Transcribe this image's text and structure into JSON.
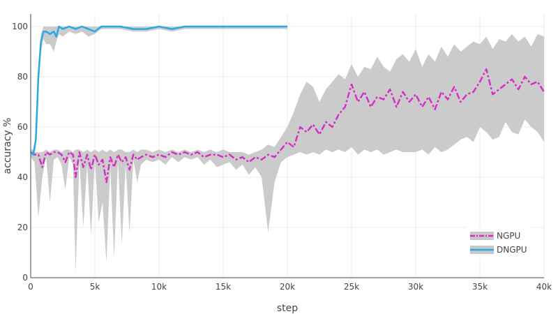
{
  "chart_data": {
    "type": "line",
    "title": "",
    "xlabel": "step",
    "ylabel": "accuracy %",
    "xlim": [
      0,
      40000
    ],
    "ylim": [
      0,
      105
    ],
    "grid": true,
    "legend_position": "bottom-right",
    "x_ticks": [
      0,
      5000,
      10000,
      15000,
      20000,
      25000,
      30000,
      35000,
      40000
    ],
    "x_tick_labels": [
      "0",
      "5k",
      "10k",
      "15k",
      "20k",
      "25k",
      "30k",
      "35k",
      "40k"
    ],
    "y_ticks": [
      0,
      20,
      40,
      60,
      80,
      100
    ],
    "y_tick_labels": [
      "0",
      "20",
      "40",
      "60",
      "80",
      "100"
    ],
    "series": [
      {
        "name": "NGPU",
        "color": "#d62fc6",
        "band_color": "#c8c8c8",
        "line_style": "dash-dot",
        "x": [
          0,
          300,
          600,
          900,
          1200,
          1500,
          1800,
          2100,
          2400,
          2700,
          3000,
          3300,
          3500,
          3800,
          4100,
          4400,
          4700,
          5000,
          5300,
          5600,
          5900,
          6200,
          6500,
          6800,
          7100,
          7400,
          7700,
          8000,
          8300,
          8600,
          9000,
          9500,
          10000,
          10500,
          11000,
          11500,
          12000,
          12500,
          13000,
          13500,
          14000,
          14500,
          15000,
          15500,
          16000,
          16500,
          17000,
          17500,
          18000,
          18500,
          19000,
          19500,
          20000,
          20500,
          21000,
          21500,
          22000,
          22500,
          23000,
          23500,
          24000,
          24500,
          25000,
          25500,
          26000,
          26500,
          27000,
          27500,
          28000,
          28500,
          29000,
          29500,
          30000,
          30500,
          31000,
          31500,
          32000,
          32500,
          33000,
          33500,
          34000,
          34500,
          35000,
          35500,
          36000,
          36500,
          37000,
          37500,
          38000,
          38500,
          39000,
          39500,
          40000
        ],
        "values": [
          50,
          49,
          49,
          44,
          50,
          49,
          50,
          50,
          49,
          46,
          50,
          49,
          40,
          50,
          44,
          49,
          43,
          49,
          45,
          47,
          38,
          48,
          44,
          49,
          46,
          48,
          43,
          49,
          47,
          48,
          49,
          48,
          49,
          48,
          50,
          49,
          50,
          49,
          50,
          48,
          49,
          49,
          48,
          49,
          47,
          48,
          46,
          48,
          47,
          49,
          48,
          51,
          54,
          52,
          60,
          58,
          61,
          57,
          62,
          60,
          65,
          68,
          77,
          70,
          74,
          68,
          72,
          71,
          75,
          68,
          74,
          70,
          73,
          68,
          72,
          67,
          74,
          71,
          76,
          70,
          73,
          74,
          78,
          83,
          73,
          75,
          77,
          79,
          75,
          80,
          77,
          78,
          74
        ],
        "upper": [
          51,
          50,
          50,
          50,
          51,
          50,
          51,
          51,
          50,
          51,
          51,
          50,
          51,
          51,
          50,
          51,
          50,
          51,
          50,
          51,
          50,
          51,
          50,
          51,
          51,
          50,
          50,
          51,
          50,
          51,
          51,
          50,
          51,
          50,
          51,
          50,
          51,
          50,
          51,
          50,
          51,
          50,
          51,
          50,
          50,
          50,
          49,
          50,
          51,
          53,
          52,
          56,
          60,
          66,
          73,
          78,
          76,
          70,
          75,
          78,
          81,
          79,
          85,
          80,
          84,
          83,
          88,
          84,
          82,
          87,
          89,
          86,
          91,
          84,
          89,
          86,
          92,
          88,
          93,
          90,
          92,
          94,
          93,
          96,
          91,
          95,
          94,
          97,
          94,
          96,
          92,
          97,
          96
        ],
        "lower": [
          48,
          46,
          24,
          40,
          48,
          30,
          47,
          48,
          45,
          35,
          48,
          45,
          2,
          47,
          20,
          45,
          17,
          47,
          22,
          30,
          6,
          44,
          8,
          47,
          13,
          45,
          18,
          47,
          38,
          45,
          47,
          46,
          47,
          45,
          48,
          46,
          48,
          47,
          48,
          45,
          47,
          44,
          45,
          46,
          43,
          45,
          41,
          44,
          40,
          18,
          38,
          46,
          48,
          49,
          50,
          49,
          50,
          49,
          51,
          50,
          51,
          50,
          52,
          49,
          51,
          50,
          51,
          49,
          50,
          51,
          50,
          50,
          50,
          51,
          49,
          52,
          50,
          51,
          53,
          55,
          56,
          54,
          60,
          58,
          55,
          56,
          62,
          58,
          57,
          63,
          60,
          58,
          54
        ]
      },
      {
        "name": "DNGPU",
        "color": "#2aa7e6",
        "band_color": "#c8c8c8",
        "line_style": "solid",
        "x": [
          0,
          200,
          400,
          600,
          800,
          1000,
          1200,
          1500,
          1800,
          2000,
          2200,
          2500,
          3000,
          3500,
          4000,
          4500,
          5000,
          5500,
          6000,
          7000,
          8000,
          9000,
          10000,
          11000,
          12000,
          13000,
          14000,
          15000,
          16000,
          17000,
          18000,
          19000,
          20000
        ],
        "values": [
          50,
          49,
          55,
          80,
          94,
          98,
          98,
          97,
          98,
          96,
          100,
          99,
          100,
          99,
          100,
          99,
          98,
          100,
          100,
          100,
          99,
          99,
          100,
          99,
          100,
          100,
          100,
          100,
          100,
          100,
          100,
          100,
          100
        ],
        "upper": [
          51,
          51,
          57,
          83,
          97,
          100,
          100,
          100,
          100,
          100,
          100,
          100,
          100,
          100,
          100,
          100,
          100,
          100,
          100,
          100,
          100,
          100,
          100,
          100,
          100,
          100,
          100,
          100,
          100,
          100,
          100,
          100,
          100
        ],
        "lower": [
          48,
          47,
          52,
          75,
          90,
          95,
          93,
          93,
          90,
          94,
          97,
          96,
          98,
          97,
          98,
          96,
          97,
          99,
          99,
          99,
          98,
          98,
          99,
          98,
          99,
          99,
          99,
          99,
          99,
          99,
          99,
          99,
          99
        ]
      }
    ]
  }
}
